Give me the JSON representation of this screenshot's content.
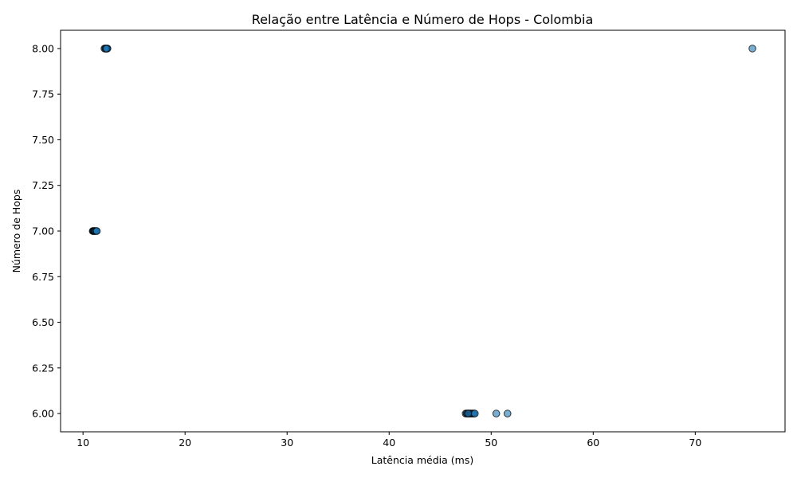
{
  "chart_data": {
    "type": "scatter",
    "title": "Relação entre Latência e Número de Hops - Colombia",
    "xlabel": "Latência média (ms)",
    "ylabel": "Número de Hops",
    "xlim": [
      7.8,
      78.8
    ],
    "ylim": [
      5.9,
      8.1
    ],
    "xticks": [
      10,
      20,
      30,
      40,
      50,
      60,
      70
    ],
    "xtick_labels": [
      "10",
      "20",
      "30",
      "40",
      "50",
      "60",
      "70"
    ],
    "yticks": [
      6.0,
      6.25,
      6.5,
      6.75,
      7.0,
      7.25,
      7.5,
      7.75,
      8.0
    ],
    "ytick_labels": [
      "6.00",
      "6.25",
      "6.50",
      "6.75",
      "7.00",
      "7.25",
      "7.50",
      "7.75",
      "8.00"
    ],
    "grid": false,
    "marker_color": "#1f77b4",
    "marker_edge_color": "#000000",
    "marker_alpha": 0.6,
    "points": [
      {
        "x": 12.1,
        "y": 8
      },
      {
        "x": 12.2,
        "y": 8
      },
      {
        "x": 12.25,
        "y": 8
      },
      {
        "x": 12.3,
        "y": 8
      },
      {
        "x": 12.35,
        "y": 8
      },
      {
        "x": 12.4,
        "y": 8
      },
      {
        "x": 12.2,
        "y": 8
      },
      {
        "x": 12.3,
        "y": 8
      },
      {
        "x": 75.6,
        "y": 8
      },
      {
        "x": 10.95,
        "y": 7
      },
      {
        "x": 11.0,
        "y": 7
      },
      {
        "x": 11.05,
        "y": 7
      },
      {
        "x": 11.1,
        "y": 7
      },
      {
        "x": 11.15,
        "y": 7
      },
      {
        "x": 11.2,
        "y": 7
      },
      {
        "x": 11.3,
        "y": 7
      },
      {
        "x": 11.35,
        "y": 7
      },
      {
        "x": 47.5,
        "y": 6
      },
      {
        "x": 47.6,
        "y": 6
      },
      {
        "x": 47.7,
        "y": 6
      },
      {
        "x": 47.8,
        "y": 6
      },
      {
        "x": 47.9,
        "y": 6
      },
      {
        "x": 48.0,
        "y": 6
      },
      {
        "x": 48.1,
        "y": 6
      },
      {
        "x": 48.2,
        "y": 6
      },
      {
        "x": 48.3,
        "y": 6
      },
      {
        "x": 48.4,
        "y": 6
      },
      {
        "x": 47.75,
        "y": 6
      },
      {
        "x": 50.5,
        "y": 6
      },
      {
        "x": 51.6,
        "y": 6
      }
    ]
  }
}
